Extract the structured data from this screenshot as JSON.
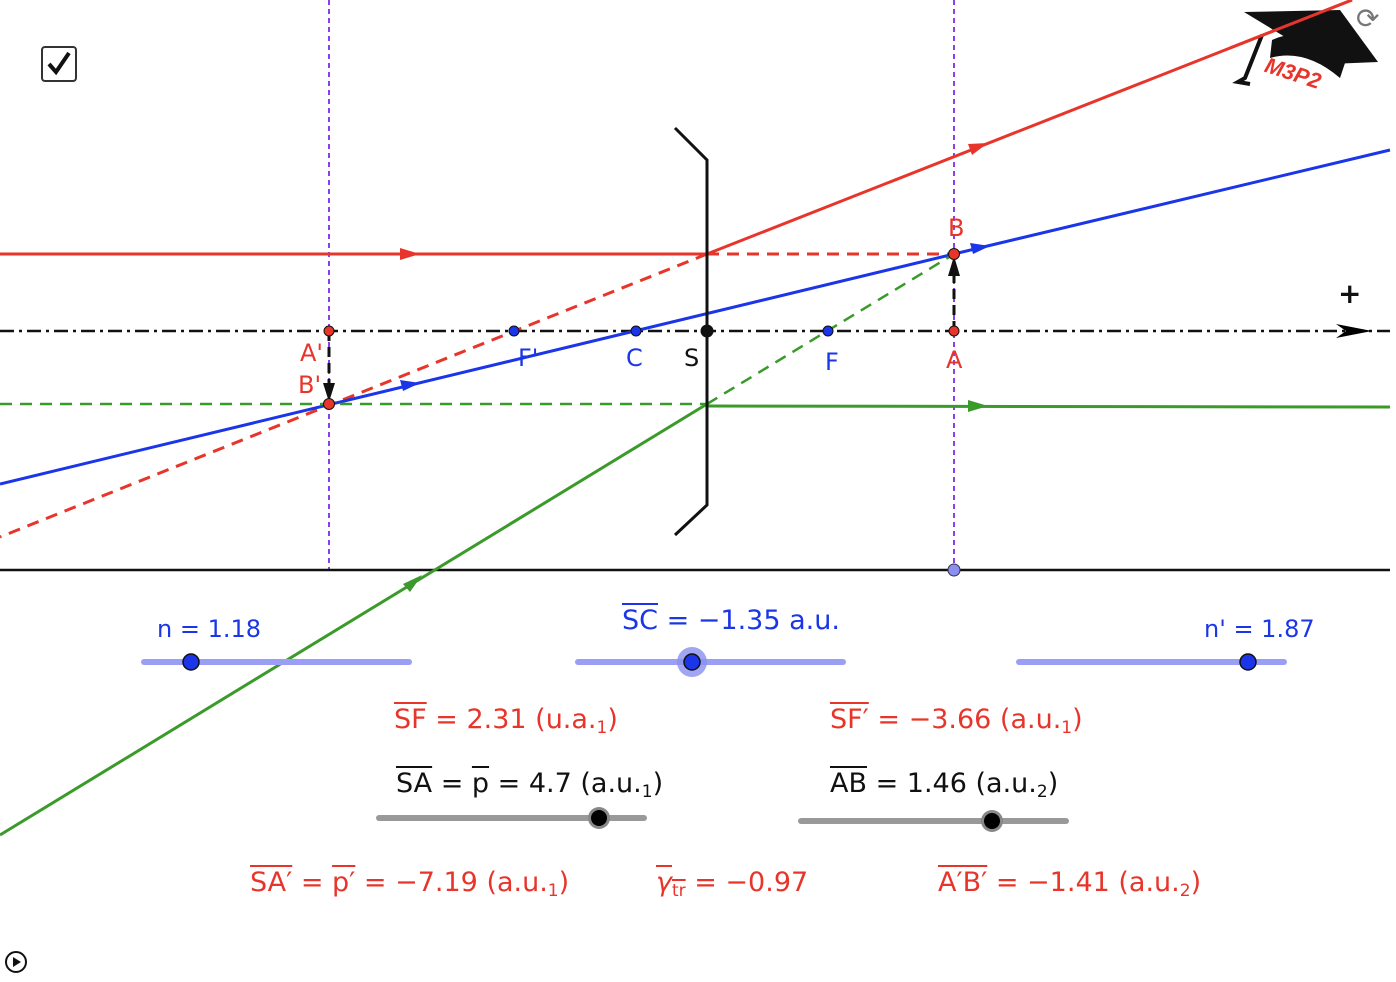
{
  "colors": {
    "red": "#e8352b",
    "blue": "#1a36e8",
    "green": "#3a9a2a",
    "purple": "#8a3ef0",
    "slider_blue": "#9a9ef5",
    "slider_gray": "#999999"
  },
  "checkbox": {
    "checked": true
  },
  "logo": {
    "text": "M3P2",
    "icon": "graduation-cap-icon"
  },
  "reset_icon": "refresh-icon",
  "play_icon": "play-icon",
  "axis": {
    "plus_label": "+"
  },
  "points": {
    "A_prime": "A'",
    "B_prime": "B'",
    "F_prime": "F'",
    "C": "C",
    "S": "S",
    "F": "F",
    "A": "A",
    "B": "B"
  },
  "sliders": {
    "n": {
      "label": "n = 1.18",
      "value": 1.18
    },
    "SC": {
      "lhs": "SC",
      "rest": " = −1.35 a.u.",
      "value": -1.35
    },
    "n_prime": {
      "label": "n' = 1.87",
      "value": 1.87
    },
    "SA": {
      "lhs": "SA",
      "mid": " = ",
      "p": "p",
      "rest": " = 4.7 (a.u.",
      "sub": "1",
      "close": ")",
      "value": 4.7
    },
    "AB": {
      "lhs": "AB",
      "rest": " =  1.46 (a.u.",
      "sub": "2",
      "close": ")",
      "value": 1.46
    }
  },
  "results": {
    "SF": {
      "lhs": "SF",
      "rest": " = 2.31 (u.a.",
      "sub": "1",
      "close": ")"
    },
    "SF_prime": {
      "lhs": "SF′",
      "rest": " = −3.66 (a.u.",
      "sub": "1",
      "close": ")"
    },
    "SA_prime": {
      "lhs": "SA′",
      "mid": " = ",
      "p": "p′",
      "rest": " = −7.19 (a.u.",
      "sub": "1",
      "close": ")"
    },
    "gamma": {
      "lhs": "γ",
      "lhs_sub": "tr",
      "rest": " = −0.97"
    },
    "AB_prime": {
      "lhs": "A′B′",
      "rest": " = −1.41 (a.u.",
      "sub": "2",
      "close": ")"
    }
  }
}
